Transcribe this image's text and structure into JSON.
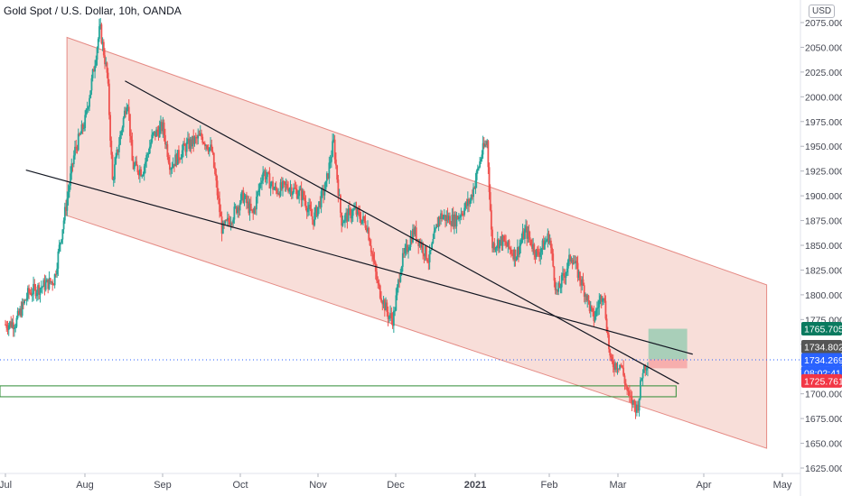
{
  "header": {
    "title": "Gold Spot / U.S. Dollar, 10h, OANDA",
    "currency": "USD"
  },
  "colors": {
    "up": "#26a69a",
    "down": "#ef5350",
    "channel_fill": "#f6d3cc",
    "channel_stroke": "#e58a84",
    "trendline": "#131722",
    "zone": "#2e8b34",
    "target": "#0a7a5f",
    "stop": "#f23645",
    "current": "#2962ff",
    "last_price": "#555555"
  },
  "chart_data": {
    "type": "candlestick",
    "symbol": "XAUUSD",
    "interval": "10h",
    "y_range": [
      1612,
      2092
    ],
    "x_range": [
      "2020-07-01",
      "2021-05-01"
    ],
    "y_ticks": [
      "2075.000",
      "2050.000",
      "2025.000",
      "2000.000",
      "1975.000",
      "1950.000",
      "1925.000",
      "1900.000",
      "1875.000",
      "1850.000",
      "1825.000",
      "1800.000",
      "1775.000",
      "1750.000",
      "1725.000",
      "1700.000",
      "1675.000",
      "1650.000",
      "1625.000"
    ],
    "x_ticks": [
      {
        "label": "Jul",
        "date": "2020-07-01"
      },
      {
        "label": "Aug",
        "date": "2020-08-01"
      },
      {
        "label": "Sep",
        "date": "2020-09-01"
      },
      {
        "label": "Oct",
        "date": "2020-10-01"
      },
      {
        "label": "Nov",
        "date": "2020-11-01"
      },
      {
        "label": "Dec",
        "date": "2020-12-01"
      },
      {
        "label": "2021",
        "date": "2021-01-01"
      },
      {
        "label": "Feb",
        "date": "2021-02-01"
      },
      {
        "label": "Mar",
        "date": "2021-03-01"
      },
      {
        "label": "Apr",
        "date": "2021-04-01"
      },
      {
        "label": "May",
        "date": "2021-05-01"
      }
    ],
    "price_path": [
      [
        "2020-07-01",
        1770
      ],
      [
        "2020-07-05",
        1772
      ],
      [
        "2020-07-10",
        1802
      ],
      [
        "2020-07-15",
        1808
      ],
      [
        "2020-07-20",
        1815
      ],
      [
        "2020-07-24",
        1880
      ],
      [
        "2020-07-28",
        1945
      ],
      [
        "2020-08-01",
        1975
      ],
      [
        "2020-08-04",
        2020
      ],
      [
        "2020-08-07",
        2070
      ],
      [
        "2020-08-10",
        2020
      ],
      [
        "2020-08-12",
        1915
      ],
      [
        "2020-08-14",
        1945
      ],
      [
        "2020-08-18",
        2000
      ],
      [
        "2020-08-20",
        1930
      ],
      [
        "2020-08-24",
        1925
      ],
      [
        "2020-08-28",
        1960
      ],
      [
        "2020-09-01",
        1970
      ],
      [
        "2020-09-04",
        1930
      ],
      [
        "2020-09-10",
        1950
      ],
      [
        "2020-09-16",
        1960
      ],
      [
        "2020-09-20",
        1945
      ],
      [
        "2020-09-24",
        1865
      ],
      [
        "2020-09-28",
        1880
      ],
      [
        "2020-10-02",
        1900
      ],
      [
        "2020-10-06",
        1880
      ],
      [
        "2020-10-10",
        1925
      ],
      [
        "2020-10-15",
        1905
      ],
      [
        "2020-10-20",
        1910
      ],
      [
        "2020-10-26",
        1900
      ],
      [
        "2020-10-30",
        1875
      ],
      [
        "2020-11-04",
        1910
      ],
      [
        "2020-11-07",
        1955
      ],
      [
        "2020-11-10",
        1875
      ],
      [
        "2020-11-15",
        1885
      ],
      [
        "2020-11-20",
        1870
      ],
      [
        "2020-11-24",
        1810
      ],
      [
        "2020-11-28",
        1780
      ],
      [
        "2020-11-30",
        1775
      ],
      [
        "2020-12-03",
        1830
      ],
      [
        "2020-12-08",
        1865
      ],
      [
        "2020-12-14",
        1835
      ],
      [
        "2020-12-18",
        1880
      ],
      [
        "2020-12-24",
        1875
      ],
      [
        "2020-12-30",
        1895
      ],
      [
        "2021-01-04",
        1945
      ],
      [
        "2021-01-06",
        1955
      ],
      [
        "2021-01-08",
        1850
      ],
      [
        "2021-01-12",
        1855
      ],
      [
        "2021-01-18",
        1840
      ],
      [
        "2021-01-22",
        1865
      ],
      [
        "2021-01-27",
        1840
      ],
      [
        "2021-02-01",
        1860
      ],
      [
        "2021-02-04",
        1800
      ],
      [
        "2021-02-10",
        1840
      ],
      [
        "2021-02-16",
        1800
      ],
      [
        "2021-02-19",
        1775
      ],
      [
        "2021-02-23",
        1805
      ],
      [
        "2021-02-26",
        1730
      ],
      [
        "2021-03-02",
        1730
      ],
      [
        "2021-03-05",
        1695
      ],
      [
        "2021-03-08",
        1685
      ],
      [
        "2021-03-10",
        1725
      ],
      [
        "2021-03-12",
        1734
      ]
    ],
    "current_price": 1734.269,
    "last_price": 1734.802,
    "countdown": "08:02:41",
    "position": {
      "entry": 1734.802,
      "target": 1765.705,
      "stop": 1725.761,
      "start": "2021-03-12",
      "end": "2021-03-26"
    },
    "channel": {
      "upper": [
        [
          "2020-07-25",
          2060
        ],
        [
          "2021-04-25",
          1810
        ]
      ],
      "lower": [
        [
          "2020-07-25",
          1880
        ],
        [
          "2021-04-25",
          1645
        ]
      ]
    },
    "trendlines": [
      [
        [
          "2020-07-09",
          1926
        ],
        [
          "2021-03-28",
          1740
        ]
      ],
      [
        [
          "2020-08-17",
          2016
        ],
        [
          "2021-03-23",
          1710
        ]
      ]
    ],
    "support_zone": {
      "top": 1708,
      "bottom": 1697,
      "start": "2020-07-01",
      "end": "2021-03-22"
    },
    "labels": {
      "target": "1765.705",
      "last": "1734.802",
      "current": "1734.269",
      "countdown": "08:02:41",
      "stop": "1725.761"
    }
  }
}
